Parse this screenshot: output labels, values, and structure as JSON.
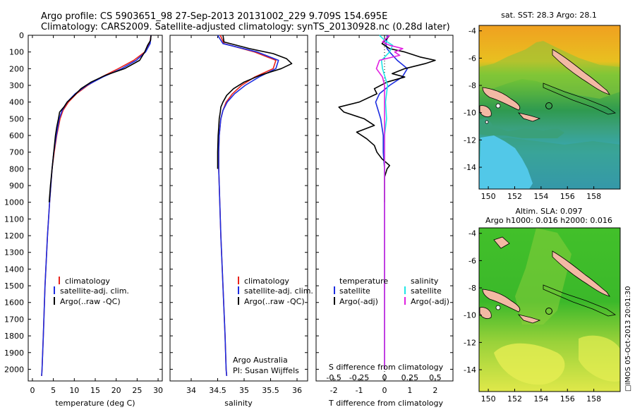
{
  "header": {
    "title_line1": "Argo profile: CS 5903651_98 27-Sep-2013 20131002_229 9.709S 154.695E",
    "title_line2": "Climatology: CARS2009. Satellite-adjusted climatology: synTS_20130928.nc (0.28d later)"
  },
  "colors": {
    "climatology": "#e8231c",
    "satellite": "#1c2ce0",
    "argo": "#000000",
    "sal_satellite": "#1ee6e6",
    "sal_argo": "#e020e0"
  },
  "depth_axis": {
    "ticks": [
      "0",
      "100",
      "200",
      "300",
      "400",
      "500",
      "600",
      "700",
      "800",
      "900",
      "1000",
      "1100",
      "1200",
      "1300",
      "1400",
      "1500",
      "1600",
      "1700",
      "1800",
      "1900",
      "2000"
    ],
    "range": [
      0,
      2070
    ]
  },
  "chart_data": [
    {
      "type": "line",
      "id": "temperature",
      "xlabel": "temperature (deg C)",
      "ylabel": "",
      "xlim": [
        -1,
        31
      ],
      "ylim": [
        2070,
        0
      ],
      "xticks": [
        "0",
        "5",
        "10",
        "15",
        "20",
        "25",
        "30"
      ],
      "legend": [
        "climatology",
        "satellite-adj. clim.",
        "Argo(..raw -QC)"
      ],
      "series": [
        {
          "name": "climatology",
          "depth": [
            0,
            50,
            100,
            150,
            200,
            250,
            300,
            350,
            400,
            450,
            500,
            600,
            700,
            800,
            1000,
            1200,
            1500,
            1800,
            2000,
            2040
          ],
          "values": [
            28.3,
            28.0,
            26.8,
            24.2,
            20.5,
            16.5,
            13.2,
            10.5,
            8.6,
            7.3,
            6.6,
            5.8,
            5.2,
            4.7,
            4.1,
            3.6,
            3.0,
            2.6,
            2.3,
            2.2
          ]
        },
        {
          "name": "satellite-adj. clim.",
          "depth": [
            0,
            50,
            100,
            150,
            200,
            250,
            300,
            350,
            400,
            450,
            500,
            600,
            700,
            800,
            1000,
            1200,
            1500,
            1800,
            2000,
            2040
          ],
          "values": [
            28.3,
            28.1,
            27.0,
            24.8,
            21.3,
            16.8,
            13.0,
            10.2,
            8.3,
            7.1,
            6.4,
            5.7,
            5.1,
            4.7,
            4.1,
            3.6,
            3.0,
            2.6,
            2.3,
            2.2
          ]
        },
        {
          "name": "Argo(..raw -QC)",
          "depth": [
            0,
            30,
            60,
            100,
            150,
            200,
            240,
            280,
            320,
            360,
            400,
            430,
            460,
            500,
            550,
            600,
            700,
            800,
            900,
            1000
          ],
          "values": [
            28.3,
            28.2,
            27.5,
            26.8,
            25.6,
            22.0,
            17.4,
            14.0,
            11.6,
            10.0,
            8.3,
            7.5,
            6.5,
            6.2,
            5.8,
            5.5,
            5.1,
            4.7,
            4.3,
            4.0
          ]
        }
      ]
    },
    {
      "type": "line",
      "id": "salinity",
      "xlabel": "salinity",
      "ylabel": "",
      "xlim": [
        33.6,
        36.2
      ],
      "ylim": [
        2070,
        0
      ],
      "xticks": [
        "34",
        "34.5",
        "35",
        "35.5",
        "36"
      ],
      "legend": [
        "climatology",
        "satellite-adj. clim.",
        "Argo(..raw -QC)"
      ],
      "footer": [
        "Argo Australia",
        "PI: Susan Wijffels"
      ],
      "series": [
        {
          "name": "climatology",
          "depth": [
            0,
            50,
            100,
            150,
            200,
            250,
            300,
            350,
            400,
            450,
            500,
            600,
            700,
            800,
            1000,
            1200,
            1500,
            1800,
            2000,
            2040
          ],
          "values": [
            34.55,
            34.62,
            35.2,
            35.6,
            35.55,
            35.2,
            34.95,
            34.78,
            34.66,
            34.6,
            34.56,
            34.53,
            34.52,
            34.52,
            34.54,
            34.56,
            34.6,
            34.64,
            34.66,
            34.67
          ]
        },
        {
          "name": "satellite-adj. clim.",
          "depth": [
            0,
            50,
            100,
            150,
            200,
            250,
            300,
            350,
            400,
            450,
            500,
            600,
            700,
            800,
            1000,
            1200,
            1500,
            1800,
            2000,
            2040
          ],
          "values": [
            34.5,
            34.6,
            35.25,
            35.65,
            35.6,
            35.28,
            35.02,
            34.82,
            34.68,
            34.6,
            34.56,
            34.53,
            34.52,
            34.52,
            34.54,
            34.56,
            34.6,
            34.64,
            34.66,
            34.67
          ]
        },
        {
          "name": "Argo(..raw -QC)",
          "depth": [
            0,
            40,
            80,
            110,
            140,
            170,
            200,
            240,
            280,
            320,
            360,
            400,
            430,
            460,
            500,
            550,
            600,
            700,
            800
          ],
          "values": [
            34.6,
            34.62,
            35.1,
            35.55,
            35.8,
            35.9,
            35.7,
            35.3,
            35.0,
            34.8,
            34.67,
            34.6,
            34.56,
            34.55,
            34.53,
            34.52,
            34.51,
            34.5,
            34.5
          ]
        }
      ]
    },
    {
      "type": "line",
      "id": "difference",
      "xlabel": "T difference from climatology",
      "x2label": "S difference from climatology",
      "xlim": [
        -2.7,
        2.7
      ],
      "ylim": [
        2070,
        0
      ],
      "xticks": [
        "-2",
        "-1",
        "0",
        "1",
        "2"
      ],
      "x2ticks": [
        "-0.5",
        "-0.25",
        "0",
        "0.25",
        "0.5"
      ],
      "legend_left": [
        "temperature",
        "satellite",
        "Argo(-adj)"
      ],
      "legend_right": [
        "salinity",
        "satellite",
        "Argo(-adj)"
      ],
      "series": [
        {
          "name": "temperature satellite",
          "depth": [
            0,
            20,
            50,
            80,
            100,
            150,
            200,
            250,
            300,
            350,
            400,
            450,
            500,
            550,
            600,
            700,
            800,
            1000,
            1300,
            1600,
            2000
          ],
          "values": [
            0.1,
            0.1,
            0.05,
            0.1,
            0.2,
            0.5,
            0.9,
            0.7,
            0.2,
            -0.2,
            -0.35,
            -0.25,
            -0.15,
            -0.1,
            -0.05,
            -0.05,
            0,
            0,
            0,
            0,
            0
          ]
        },
        {
          "name": "temperature Argo(-adj)",
          "depth": [
            0,
            20,
            50,
            80,
            100,
            130,
            150,
            170,
            200,
            230,
            250,
            280,
            320,
            350,
            400,
            430,
            460,
            500,
            540,
            580,
            620,
            660,
            700,
            740,
            780,
            800,
            850,
            900,
            1000
          ],
          "values": [
            0.2,
            0.1,
            -0.1,
            0.2,
            0.8,
            1.4,
            2.0,
            1.6,
            0.8,
            0.3,
            0.8,
            0.1,
            -0.4,
            -0.3,
            -1.0,
            -1.8,
            -1.6,
            -0.8,
            -0.4,
            -1.1,
            -0.7,
            -0.4,
            -0.3,
            -0.1,
            0.2,
            0.1,
            0,
            0,
            0
          ]
        },
        {
          "name": "salinity satellite",
          "depth": [
            0,
            30,
            60,
            100,
            150,
            200,
            300,
            400,
            500,
            600,
            800,
            1000,
            1300,
            1600,
            2000
          ],
          "values": [
            -0.05,
            0.0,
            0.08,
            0.05,
            -0.03,
            -0.02,
            0.03,
            0.01,
            0.02,
            0.0,
            0.0,
            0.0,
            0.0,
            0.0,
            0.0
          ]
        },
        {
          "name": "salinity Argo(-adj)",
          "depth": [
            0,
            40,
            60,
            80,
            100,
            120,
            150,
            200,
            250,
            300,
            350,
            400,
            450,
            500,
            600,
            700,
            800,
            1000,
            1300,
            1600,
            2000
          ],
          "values": [
            0.05,
            -0.02,
            0.05,
            0.18,
            0.1,
            0.15,
            -0.05,
            -0.08,
            -0.02,
            0.0,
            0.0,
            0.0,
            0.0,
            0.0,
            0.0,
            0.0,
            0.0,
            0.0,
            0.0,
            0.0,
            0.0
          ]
        }
      ]
    }
  ],
  "maps": {
    "sst": {
      "title": "sat. SST: 28.3 Argo: 28.1",
      "yticks": [
        "-4",
        "-6",
        "-8",
        "-10",
        "-12",
        "-14"
      ],
      "xticks": [
        "150",
        "152",
        "154",
        "156",
        "158"
      ],
      "marker_lon": 154.695,
      "marker_lat": -9.709
    },
    "sla": {
      "title_line1": "Altim. SLA: 0.097",
      "title_line2": "Argo h1000: 0.016 h2000: 0.016",
      "yticks": [
        "-4",
        "-6",
        "-8",
        "-10",
        "-12",
        "-14"
      ],
      "xticks": [
        "150",
        "152",
        "154",
        "156",
        "158"
      ],
      "marker_lon": 154.695,
      "marker_lat": -9.709,
      "vertical_text": "□IMOS 05-Oct-2013 20:01:30"
    }
  }
}
